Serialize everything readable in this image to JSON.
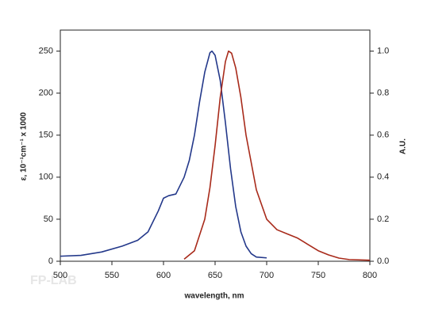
{
  "chart_data": {
    "type": "line",
    "xlabel": "wavelength, nm",
    "ylabel": "ε, 10⁻¹cm⁻¹ x 1000",
    "y2label": "A.U.",
    "watermark": "FP-LAB",
    "xlim": [
      500,
      800
    ],
    "xticks": [
      500,
      550,
      600,
      650,
      700,
      750,
      800
    ],
    "ylim": [
      0,
      275
    ],
    "yticks": [
      0,
      50,
      100,
      150,
      200,
      250
    ],
    "y2lim": [
      0,
      1.1
    ],
    "y2ticks": [
      {
        "value": 0,
        "label": "0.0"
      },
      0.2,
      0.4,
      0.6,
      0.8,
      {
        "value": 1,
        "label": "1.0"
      }
    ],
    "series": [
      {
        "color": "#23388a",
        "axis": "y",
        "x": [
          500,
          520,
          540,
          560,
          575,
          585,
          595,
          600,
          605,
          612,
          620,
          625,
          630,
          635,
          640,
          645,
          647,
          650,
          655,
          660,
          665,
          670,
          675,
          680,
          685,
          690,
          700
        ],
        "values": [
          6,
          7,
          11,
          18,
          25,
          35,
          60,
          75,
          78,
          80,
          100,
          120,
          150,
          190,
          225,
          248,
          250,
          245,
          215,
          165,
          110,
          65,
          35,
          18,
          9,
          5,
          4
        ]
      },
      {
        "color": "#a82a1a",
        "axis": "y2",
        "x": [
          620,
          630,
          640,
          645,
          650,
          655,
          660,
          663,
          666,
          670,
          675,
          680,
          690,
          700,
          710,
          720,
          730,
          740,
          750,
          760,
          770,
          780,
          800
        ],
        "values": [
          0.01,
          0.05,
          0.2,
          0.35,
          0.55,
          0.78,
          0.95,
          1.0,
          0.99,
          0.92,
          0.78,
          0.6,
          0.34,
          0.2,
          0.15,
          0.13,
          0.11,
          0.08,
          0.05,
          0.03,
          0.015,
          0.008,
          0.005
        ]
      }
    ]
  }
}
